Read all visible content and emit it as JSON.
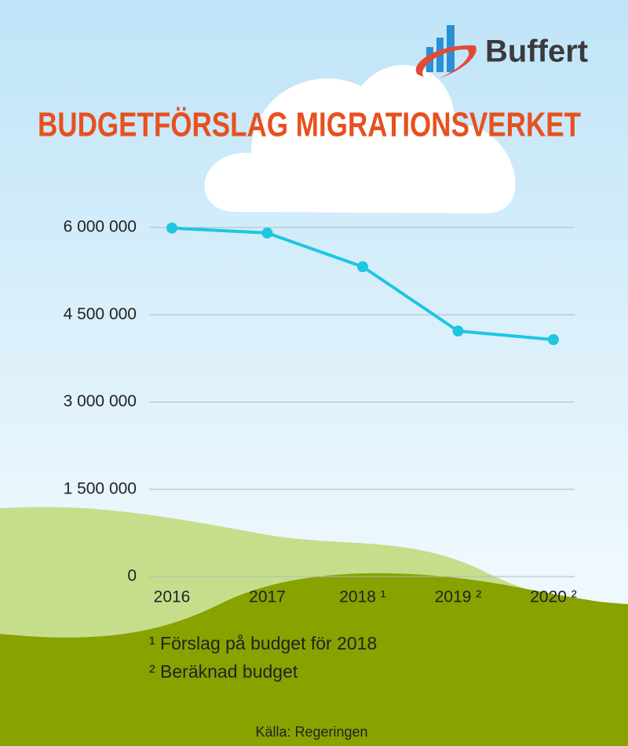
{
  "logo": "Buffert",
  "chart_data": {
    "type": "line",
    "title": "BUDGETFÖRSLAG MIGRATIONSVERKET",
    "categories": [
      "2016",
      "2017",
      "2018 ¹",
      "2019 ²",
      "2020 ²"
    ],
    "values": [
      5990000,
      5905000,
      5326000,
      4220000,
      4072000
    ],
    "color": "#1ec6e2",
    "ylim": [
      0,
      6000000
    ],
    "yticks": [
      0,
      {
        "value": 1500000,
        "label": "1 500 000"
      },
      {
        "value": 3000000,
        "label": "3 000 000"
      },
      {
        "value": 4500000,
        "label": "4 500 000"
      },
      {
        "value": 6000000,
        "label": "6 000 000"
      }
    ],
    "grid": true,
    "notes": [
      "¹ Förslag på budget för 2018",
      "² Beräknad budget"
    ],
    "source": "Källa: Regeringen"
  }
}
